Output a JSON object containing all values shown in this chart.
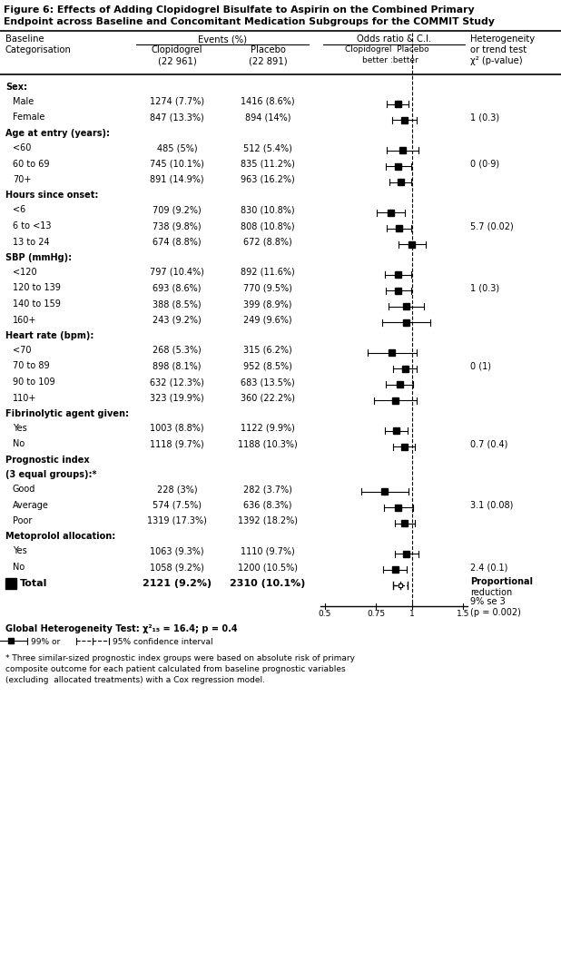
{
  "title_line1": "Figure 6: Effects of Adding Clopidogrel Bisulfate to Aspirin on the Combined Primary",
  "title_line2": "Endpoint across Baseline and Concomitant Medication Subgroups for the COMMIT Study",
  "rows": [
    {
      "label": "Sex:",
      "type": "header",
      "col2": "",
      "col3": "",
      "or": null,
      "ci_low": null,
      "ci_high": null,
      "het": ""
    },
    {
      "label": "Male",
      "type": "data",
      "col2": "1274 (7.7%)",
      "col3": "1416 (8.6%)",
      "or": 0.893,
      "ci_low": 0.82,
      "ci_high": 0.97,
      "het": ""
    },
    {
      "label": "Female",
      "type": "data",
      "col2": "847 (13.3%)",
      "col3": "894 (14%)",
      "or": 0.942,
      "ci_low": 0.855,
      "ci_high": 1.037,
      "het": "1 (0.3)"
    },
    {
      "label": "Age at entry (years):",
      "type": "header",
      "col2": "",
      "col3": "",
      "or": null,
      "ci_low": null,
      "ci_high": null,
      "het": ""
    },
    {
      "label": "<60",
      "type": "data",
      "col2": "485 (5%)",
      "col3": "512 (5.4%)",
      "or": 0.928,
      "ci_low": 0.82,
      "ci_high": 1.05,
      "het": ""
    },
    {
      "label": "60 to 69",
      "type": "data",
      "col2": "745 (10.1%)",
      "col3": "835 (11.2%)",
      "or": 0.895,
      "ci_low": 0.81,
      "ci_high": 0.99,
      "het": "0 (0·9)"
    },
    {
      "label": "70+",
      "type": "data",
      "col2": "891 (14.9%)",
      "col3": "963 (16.2%)",
      "or": 0.912,
      "ci_low": 0.835,
      "ci_high": 0.996,
      "het": ""
    },
    {
      "label": "Hours since onset:",
      "type": "header",
      "col2": "",
      "col3": "",
      "or": null,
      "ci_low": null,
      "ci_high": null,
      "het": ""
    },
    {
      "label": "<6",
      "type": "data",
      "col2": "709 (9.2%)",
      "col3": "830 (10.8%)",
      "or": 0.845,
      "ci_low": 0.755,
      "ci_high": 0.945,
      "het": ""
    },
    {
      "label": "6 to <13",
      "type": "data",
      "col2": "738 (9.8%)",
      "col3": "808 (10.8%)",
      "or": 0.9,
      "ci_low": 0.815,
      "ci_high": 0.993,
      "het": "5.7 (0.02)"
    },
    {
      "label": "13 to 24",
      "type": "data",
      "col2": "674 (8.8%)",
      "col3": "672 (8.8%)",
      "or": 1.0,
      "ci_low": 0.895,
      "ci_high": 1.118,
      "het": ""
    },
    {
      "label": "SBP (mmHg):",
      "type": "header",
      "col2": "",
      "col3": "",
      "or": null,
      "ci_low": null,
      "ci_high": null,
      "het": ""
    },
    {
      "label": "<120",
      "type": "data",
      "col2": "797 (10.4%)",
      "col3": "892 (11.6%)",
      "or": 0.893,
      "ci_low": 0.805,
      "ci_high": 0.99,
      "het": ""
    },
    {
      "label": "120 to 139",
      "type": "data",
      "col2": "693 (8.6%)",
      "col3": "770 (9.5%)",
      "or": 0.896,
      "ci_low": 0.81,
      "ci_high": 0.992,
      "het": "1 (0.3)"
    },
    {
      "label": "140 to 159",
      "type": "data",
      "col2": "388 (8.5%)",
      "col3": "399 (8.9%)",
      "or": 0.955,
      "ci_low": 0.83,
      "ci_high": 1.1,
      "het": ""
    },
    {
      "label": "160+",
      "type": "data",
      "col2": "243 (9.2%)",
      "col3": "249 (9.6%)",
      "or": 0.958,
      "ci_low": 0.79,
      "ci_high": 1.16,
      "het": ""
    },
    {
      "label": "Heart rate (bpm):",
      "type": "header",
      "col2": "",
      "col3": "",
      "or": null,
      "ci_low": null,
      "ci_high": null,
      "het": ""
    },
    {
      "label": "<70",
      "type": "data",
      "col2": "268 (5.3%)",
      "col3": "315 (6.2%)",
      "or": 0.852,
      "ci_low": 0.7,
      "ci_high": 1.038,
      "het": ""
    },
    {
      "label": "70 to 89",
      "type": "data",
      "col2": "898 (8.1%)",
      "col3": "952 (8.5%)",
      "or": 0.947,
      "ci_low": 0.862,
      "ci_high": 1.04,
      "het": "0 (1)"
    },
    {
      "label": "90 to 109",
      "type": "data",
      "col2": "632 (12.3%)",
      "col3": "683 (13.5%)",
      "or": 0.906,
      "ci_low": 0.812,
      "ci_high": 1.011,
      "het": ""
    },
    {
      "label": "110+",
      "type": "data",
      "col2": "323 (19.9%)",
      "col3": "360 (22.2%)",
      "or": 0.873,
      "ci_low": 0.737,
      "ci_high": 1.034,
      "het": ""
    },
    {
      "label": "Fibrinolytic agent given:",
      "type": "header",
      "col2": "",
      "col3": "",
      "or": null,
      "ci_low": null,
      "ci_high": null,
      "het": ""
    },
    {
      "label": "Yes",
      "type": "data",
      "col2": "1003 (8.8%)",
      "col3": "1122 (9.9%)",
      "or": 0.884,
      "ci_low": 0.808,
      "ci_high": 0.967,
      "het": ""
    },
    {
      "label": "No",
      "type": "data",
      "col2": "1118 (9.7%)",
      "col3": "1188 (10.3%)",
      "or": 0.938,
      "ci_low": 0.862,
      "ci_high": 1.021,
      "het": "0.7 (0.4)"
    },
    {
      "label": "Prognostic index",
      "type": "header2a",
      "col2": "",
      "col3": "",
      "or": null,
      "ci_low": null,
      "ci_high": null,
      "het": ""
    },
    {
      "label": "(3 equal groups):*",
      "type": "header2b",
      "col2": "",
      "col3": "",
      "or": null,
      "ci_low": null,
      "ci_high": null,
      "het": ""
    },
    {
      "label": "Good",
      "type": "data",
      "col2": "228 (3%)",
      "col3": "282 (3.7%)",
      "or": 0.805,
      "ci_low": 0.668,
      "ci_high": 0.97,
      "het": ""
    },
    {
      "label": "Average",
      "type": "data",
      "col2": "574 (7.5%)",
      "col3": "636 (8.3%)",
      "or": 0.897,
      "ci_low": 0.8,
      "ci_high": 1.005,
      "het": "3.1 (0.08)"
    },
    {
      "label": "Poor",
      "type": "data",
      "col2": "1319 (17.3%)",
      "col3": "1392 (18.2%)",
      "or": 0.944,
      "ci_low": 0.872,
      "ci_high": 1.022,
      "het": ""
    },
    {
      "label": "Metoprolol allocation:",
      "type": "header",
      "col2": "",
      "col3": "",
      "or": null,
      "ci_low": null,
      "ci_high": null,
      "het": ""
    },
    {
      "label": "Yes",
      "type": "data",
      "col2": "1063 (9.3%)",
      "col3": "1110 (9.7%)",
      "or": 0.955,
      "ci_low": 0.87,
      "ci_high": 1.049,
      "het": ""
    },
    {
      "label": "No",
      "type": "data",
      "col2": "1058 (9.2%)",
      "col3": "1200 (10.5%)",
      "or": 0.873,
      "ci_low": 0.795,
      "ci_high": 0.959,
      "het": "2.4 (0.1)"
    },
    {
      "label": "Total",
      "type": "total",
      "col2": "2121 (9.2%)",
      "col3": "2310 (10.1%)",
      "or": 0.91,
      "ci_low": 0.86,
      "ci_high": 0.962,
      "het": "Proportional\nreduction\n9% se 3\n(p = 0.002)"
    }
  ],
  "global_het": "Global Heterogeneity Test: χ²₁₅ = 16.4; p = 0.4",
  "footnote": "* Three similar-sized prognostic index groups were based on absolute risk of primary\ncomposite outcome for each patient calculated from baseline prognostic variables\n(excluding  allocated treatments) with a Cox regression model.",
  "or_scale_min": 0.5,
  "or_scale_max": 1.5,
  "xtick_vals": [
    0.5,
    0.75,
    1.0,
    1.5
  ],
  "xtick_labels": [
    "0.5",
    "0.75",
    "1",
    "1.5"
  ]
}
